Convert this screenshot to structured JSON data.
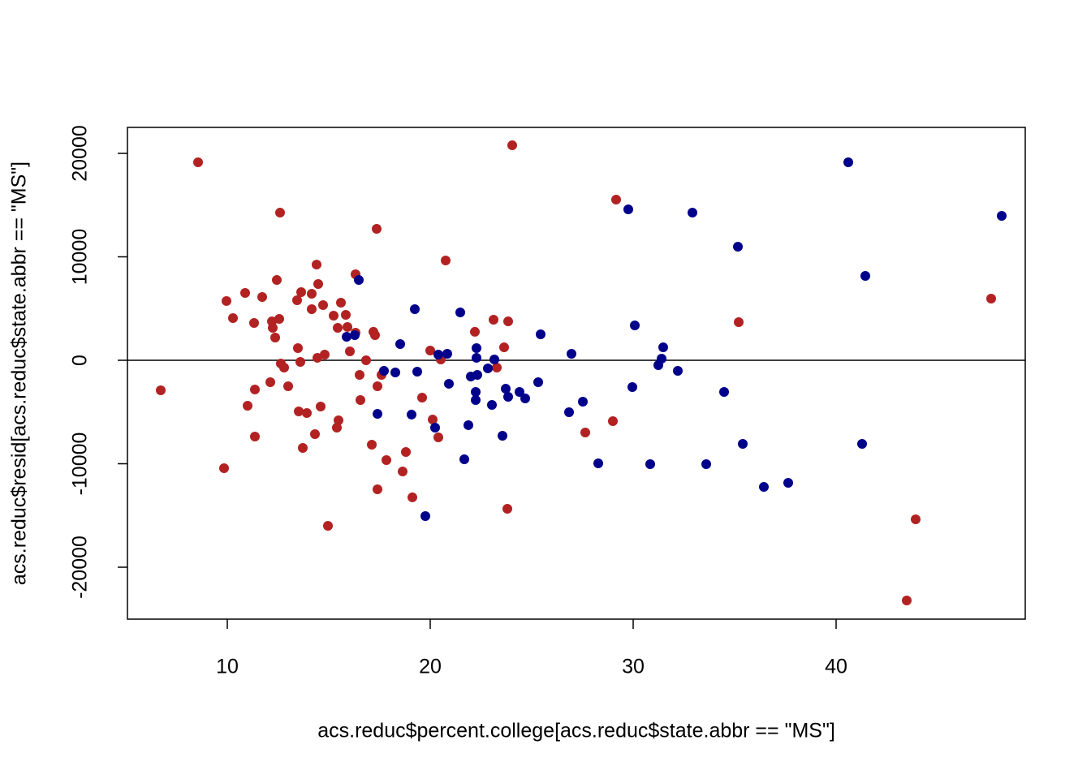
{
  "chart_data": {
    "type": "scatter",
    "xlabel": "acs.reduc$percent.college[acs.reduc$state.abbr == \"MS\"]",
    "ylabel": "acs.reduc$resid[acs.reduc$state.abbr == \"MS\"]",
    "xlim": [
      5.08,
      49.32
    ],
    "ylim": [
      -25020,
      22510
    ],
    "xticks": [
      10,
      20,
      30,
      40
    ],
    "yticks": [
      -20000,
      -10000,
      0,
      10000,
      20000
    ],
    "reference_line": 0,
    "series": [
      {
        "color": "#b22222",
        "x": [
          6.72,
          8.56,
          9.96,
          9.84,
          10.28,
          10.88,
          11.0,
          11.32,
          11.36,
          11.36,
          11.72,
          12.12,
          12.2,
          12.24,
          12.36,
          12.44,
          12.6,
          12.56,
          12.64,
          12.8,
          13.0,
          13.44,
          13.48,
          13.52,
          13.64,
          13.6,
          13.72,
          13.92,
          14.16,
          14.16,
          14.32,
          14.4,
          14.48,
          14.44,
          14.6,
          14.72,
          14.8,
          14.96,
          15.24,
          15.4,
          15.48,
          15.44,
          15.6,
          15.84,
          15.92,
          16.04,
          16.32,
          16.32,
          16.52,
          16.56,
          16.84,
          17.12,
          17.2,
          17.28,
          17.36,
          17.4,
          17.4,
          17.6,
          17.84,
          18.64,
          18.8,
          19.12,
          19.6,
          20.0,
          20.12,
          20.4,
          20.52,
          20.76,
          22.2,
          23.28,
          23.12,
          23.64,
          23.84,
          23.8,
          24.04,
          27.64,
          29.0,
          29.16,
          35.2,
          43.92,
          43.48,
          47.64
        ],
        "values": [
          -2900,
          19140,
          5730,
          -10430,
          4080,
          6510,
          -4390,
          3610,
          -2820,
          -7370,
          6120,
          -2120,
          3760,
          3140,
          2200,
          7760,
          14270,
          4000,
          -310,
          -710,
          -2510,
          5800,
          1180,
          -4940,
          6590,
          -160,
          -8470,
          -5100,
          4940,
          6430,
          -7140,
          9250,
          7370,
          240,
          -4470,
          5330,
          550,
          -16000,
          4310,
          -6510,
          -5800,
          3140,
          5570,
          4390,
          3220,
          860,
          8310,
          2670,
          -1410,
          -3840,
          0,
          -8160,
          2750,
          2430,
          12710,
          -2510,
          -12470,
          -1410,
          -9650,
          -10750,
          -8860,
          -13250,
          -3610,
          940,
          -5730,
          -7450,
          80,
          9650,
          2750,
          -710,
          3920,
          1250,
          3760,
          -14350,
          20780,
          -6980,
          -5880,
          15530,
          3690,
          -15370,
          -23220,
          5960
        ]
      },
      {
        "color": "#00008b",
        "x": [
          16.48,
          15.88,
          16.28,
          17.4,
          17.72,
          18.28,
          18.52,
          19.08,
          19.24,
          19.36,
          19.76,
          20.24,
          20.4,
          20.84,
          20.92,
          21.48,
          21.68,
          21.88,
          22.0,
          22.24,
          22.24,
          22.28,
          22.28,
          22.32,
          22.84,
          23.04,
          23.16,
          23.56,
          23.72,
          23.84,
          24.4,
          24.68,
          25.32,
          25.44,
          26.84,
          26.96,
          27.52,
          28.28,
          29.76,
          29.96,
          30.08,
          30.84,
          31.24,
          31.4,
          31.48,
          32.2,
          32.92,
          33.6,
          34.48,
          35.16,
          35.4,
          36.44,
          37.64,
          40.6,
          41.28,
          41.44,
          48.16
        ],
        "values": [
          7760,
          2270,
          2430,
          -5180,
          -1020,
          -1180,
          1570,
          -5250,
          4940,
          -1100,
          -15060,
          -6510,
          550,
          630,
          -2270,
          4630,
          -9570,
          -6270,
          -1570,
          -3060,
          -3840,
          1180,
          240,
          -1410,
          -780,
          -4310,
          80,
          -7290,
          -2750,
          -3530,
          -3060,
          -3690,
          -2120,
          2510,
          -5020,
          630,
          -4000,
          -9960,
          14590,
          -2590,
          3370,
          -10040,
          -470,
          160,
          1250,
          -1020,
          14270,
          -10040,
          -3060,
          10980,
          -8080,
          -12240,
          -11840,
          19140,
          -8080,
          8160,
          13960
        ]
      }
    ]
  }
}
